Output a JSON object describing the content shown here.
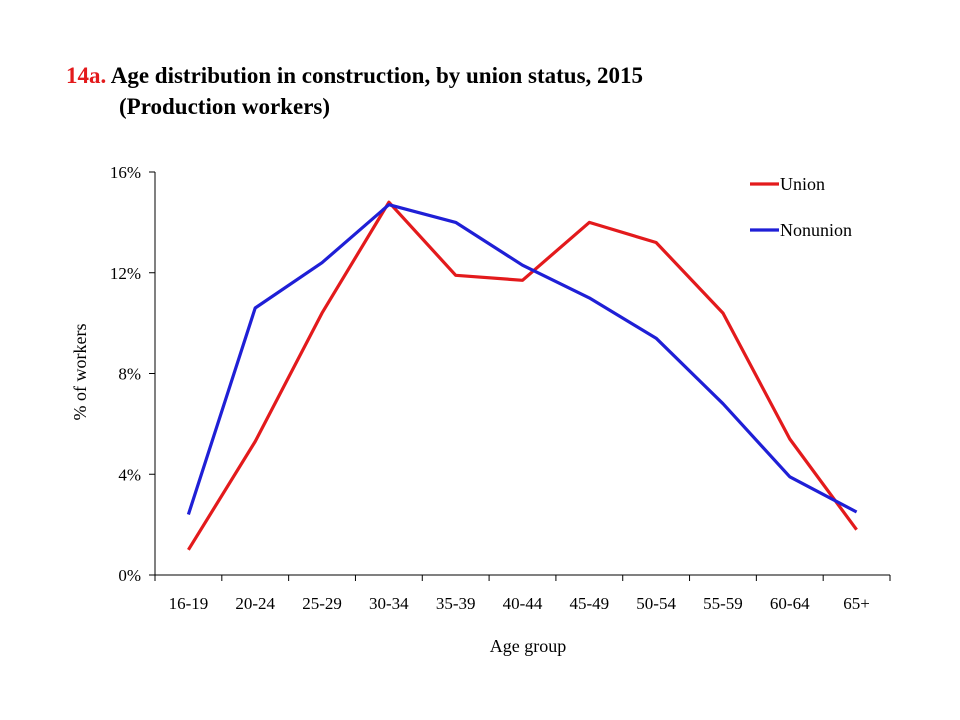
{
  "chart_data": {
    "type": "line",
    "title_number": "14a.",
    "title": "Age distribution in construction, by union status, 2015",
    "subtitle": "(Production workers)",
    "xlabel": "Age group",
    "ylabel": "% of workers",
    "ylim": [
      0,
      16
    ],
    "yticks": [
      "0%",
      "4%",
      "8%",
      "12%",
      "16%"
    ],
    "categories": [
      "16-19",
      "20-24",
      "25-29",
      "30-34",
      "35-39",
      "40-44",
      "45-49",
      "50-54",
      "55-59",
      "60-64",
      "65+"
    ],
    "legend_position": "top-right",
    "grid": false,
    "series": [
      {
        "name": "Union",
        "color": "#e31a1c",
        "values": [
          1.0,
          5.3,
          10.4,
          14.8,
          11.9,
          11.7,
          14.0,
          13.2,
          10.4,
          5.4,
          1.8
        ]
      },
      {
        "name": "Nonunion",
        "color": "#1f1fd6",
        "values": [
          2.4,
          10.6,
          12.4,
          14.7,
          14.0,
          12.3,
          11.0,
          9.4,
          6.8,
          3.9,
          2.5
        ]
      }
    ]
  }
}
